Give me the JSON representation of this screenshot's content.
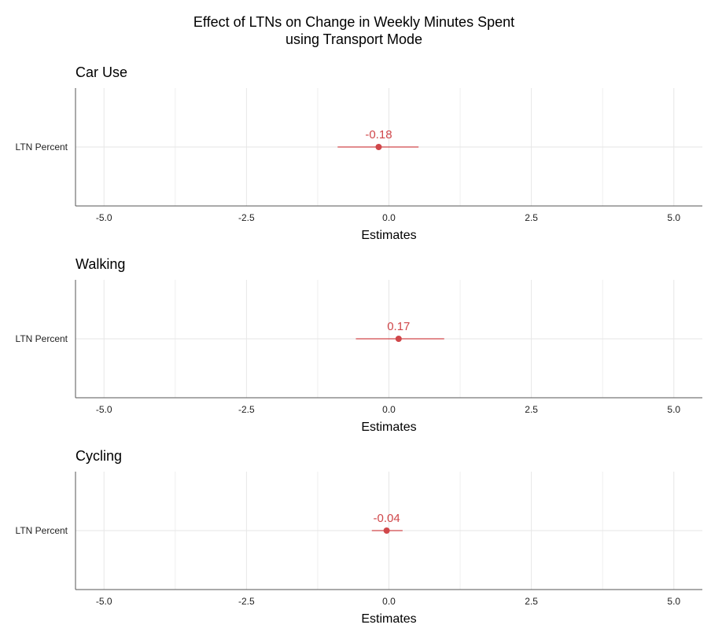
{
  "title_lines": [
    "Effect of LTNs on Change in Weekly Minutes Spent",
    "using Transport Mode"
  ],
  "colors": {
    "estimate": "#d0474a"
  },
  "chart_data": [
    {
      "type": "scatter",
      "title": "Car Use",
      "xlabel": "Estimates",
      "categories": [
        "LTN Percent"
      ],
      "x_ticks": [
        -5.0,
        -2.5,
        0.0,
        2.5,
        5.0
      ],
      "x_tick_labels": [
        "-5.0",
        "-2.5",
        "0.0",
        "2.5",
        "5.0"
      ],
      "xlim": [
        -5.5,
        5.5
      ],
      "grid": true,
      "estimates": [
        {
          "term": "LTN Percent",
          "estimate": -0.18,
          "label": "-0.18",
          "ci_low": -0.9,
          "ci_high": 0.52
        }
      ]
    },
    {
      "type": "scatter",
      "title": "Walking",
      "xlabel": "Estimates",
      "categories": [
        "LTN Percent"
      ],
      "x_ticks": [
        -5.0,
        -2.5,
        0.0,
        2.5,
        5.0
      ],
      "x_tick_labels": [
        "-5.0",
        "-2.5",
        "0.0",
        "2.5",
        "5.0"
      ],
      "xlim": [
        -5.5,
        5.5
      ],
      "grid": true,
      "estimates": [
        {
          "term": "LTN Percent",
          "estimate": 0.17,
          "label": "0.17",
          "ci_low": -0.58,
          "ci_high": 0.97
        }
      ]
    },
    {
      "type": "scatter",
      "title": "Cycling",
      "xlabel": "Estimates",
      "categories": [
        "LTN Percent"
      ],
      "x_ticks": [
        -5.0,
        -2.5,
        0.0,
        2.5,
        5.0
      ],
      "x_tick_labels": [
        "-5.0",
        "-2.5",
        "0.0",
        "2.5",
        "5.0"
      ],
      "xlim": [
        -5.5,
        5.5
      ],
      "grid": true,
      "estimates": [
        {
          "term": "LTN Percent",
          "estimate": -0.04,
          "label": "-0.04",
          "ci_low": -0.3,
          "ci_high": 0.24
        }
      ]
    }
  ]
}
